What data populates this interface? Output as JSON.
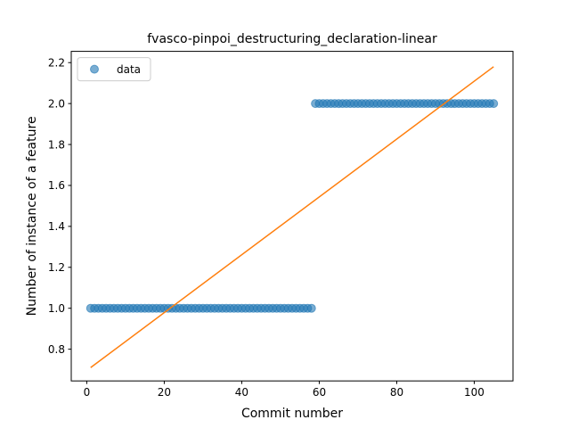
{
  "chart_data": {
    "type": "scatter",
    "title": "fvasco-pinpoi_destructuring_declaration-linear",
    "xlabel": "Commit number",
    "ylabel": "Number of instance of a feature",
    "xlim": [
      -4,
      110
    ],
    "ylim": [
      0.645,
      2.255
    ],
    "xticks": [
      0,
      20,
      40,
      60,
      80,
      100
    ],
    "yticks": [
      0.8,
      1.0,
      1.2,
      1.4,
      1.6,
      1.8,
      2.0,
      2.2
    ],
    "xtick_labels": [
      "0",
      "20",
      "40",
      "60",
      "80",
      "100"
    ],
    "ytick_labels": [
      "0.8",
      "1.0",
      "1.2",
      "1.4",
      "1.6",
      "1.8",
      "2.0",
      "2.2"
    ],
    "grid": false,
    "legend": {
      "position": "top-left",
      "entries": [
        {
          "label": "data",
          "marker": "circle",
          "color": "#1f77b4"
        }
      ]
    },
    "series": [
      {
        "name": "data",
        "kind": "scatter",
        "color": "#1f77b4",
        "segments": [
          {
            "x_start": 1,
            "x_end": 58,
            "y": 1.0
          },
          {
            "x_start": 59,
            "x_end": 105,
            "y": 2.0
          }
        ]
      },
      {
        "kind": "line",
        "color": "#ff7f0e",
        "x": [
          1,
          105
        ],
        "y": [
          0.71,
          2.18
        ]
      }
    ]
  }
}
